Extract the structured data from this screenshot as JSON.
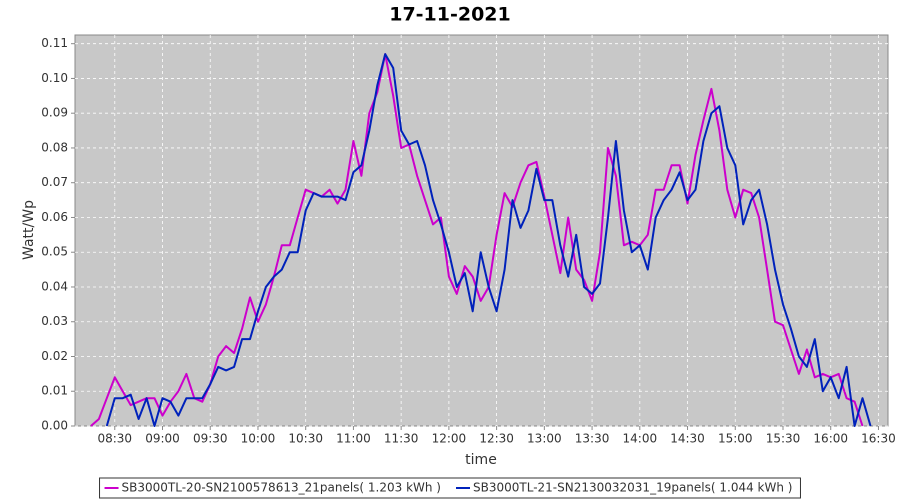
{
  "chart_data": {
    "type": "line",
    "title": "17-11-2021",
    "x_label": "time",
    "y_label": "Watt/Wp",
    "x": [
      495,
      500,
      505,
      510,
      515,
      520,
      525,
      530,
      535,
      540,
      545,
      550,
      555,
      560,
      565,
      570,
      575,
      580,
      585,
      590,
      595,
      600,
      605,
      610,
      615,
      620,
      625,
      630,
      635,
      640,
      645,
      650,
      655,
      660,
      665,
      670,
      675,
      680,
      685,
      690,
      695,
      700,
      705,
      710,
      715,
      720,
      725,
      730,
      735,
      740,
      745,
      750,
      755,
      760,
      765,
      770,
      775,
      780,
      785,
      790,
      795,
      800,
      805,
      810,
      815,
      820,
      825,
      830,
      835,
      840,
      845,
      850,
      855,
      860,
      865,
      870,
      875,
      880,
      885,
      890,
      895,
      900,
      905,
      910,
      915,
      920,
      925,
      930,
      935,
      940,
      945,
      950,
      955,
      960,
      965,
      970,
      975,
      980,
      985
    ],
    "series": [
      {
        "name": "SB3000TL-20-SN2100578613_21panels( 1.203 kWh )",
        "color": "#cc00cc",
        "values": [
          0,
          0.002,
          0.008,
          0.014,
          0.01,
          0.006,
          0.007,
          0.008,
          0.008,
          0.003,
          0.007,
          0.01,
          0.015,
          0.008,
          0.007,
          0.012,
          0.02,
          0.023,
          0.021,
          0.028,
          0.037,
          0.03,
          0.035,
          0.043,
          0.052,
          0.052,
          0.06,
          0.068,
          0.067,
          0.066,
          0.068,
          0.064,
          0.068,
          0.082,
          0.072,
          0.09,
          0.096,
          0.107,
          0.095,
          0.08,
          0.081,
          0.072,
          0.065,
          0.058,
          0.06,
          0.043,
          0.038,
          0.046,
          0.043,
          0.036,
          0.04,
          0.055,
          0.067,
          0.063,
          0.07,
          0.075,
          0.076,
          0.066,
          0.055,
          0.044,
          0.06,
          0.045,
          0.042,
          0.036,
          0.05,
          0.08,
          0.072,
          0.052,
          0.053,
          0.052,
          0.055,
          0.068,
          0.068,
          0.075,
          0.075,
          0.064,
          0.078,
          0.088,
          0.097,
          0.085,
          0.068,
          0.06,
          0.068,
          0.067,
          0.06,
          0.045,
          0.03,
          0.029,
          0.022,
          0.015,
          0.022,
          0.014,
          0.015,
          0.014,
          0.015,
          0.008,
          0.007,
          0,
          null
        ]
      },
      {
        "name": "SB3000TL-21-SN2130032031_19panels( 1.044 kWh )",
        "color": "#0022bb",
        "values": [
          null,
          null,
          0,
          0.008,
          0.008,
          0.009,
          0.002,
          0.008,
          0,
          0.008,
          0.007,
          0.003,
          0.008,
          0.008,
          0.008,
          0.012,
          0.017,
          0.016,
          0.017,
          0.025,
          0.025,
          0.033,
          0.04,
          0.043,
          0.045,
          0.05,
          0.05,
          0.062,
          0.067,
          0.066,
          0.066,
          0.066,
          0.065,
          0.073,
          0.075,
          0.085,
          0.098,
          0.107,
          0.103,
          0.085,
          0.081,
          0.082,
          0.075,
          0.065,
          0.058,
          0.05,
          0.04,
          0.044,
          0.033,
          0.05,
          0.04,
          0.033,
          0.045,
          0.065,
          0.057,
          0.062,
          0.074,
          0.065,
          0.065,
          0.052,
          0.043,
          0.055,
          0.04,
          0.038,
          0.041,
          0.06,
          0.082,
          0.062,
          0.05,
          0.052,
          0.045,
          0.06,
          0.065,
          0.068,
          0.073,
          0.065,
          0.068,
          0.082,
          0.09,
          0.092,
          0.08,
          0.075,
          0.058,
          0.065,
          0.068,
          0.058,
          0.045,
          0.035,
          0.028,
          0.02,
          0.017,
          0.025,
          0.01,
          0.014,
          0.008,
          0.017,
          0,
          0.008,
          0
        ]
      }
    ],
    "xlim": [
      485,
      996
    ],
    "xticks": [
      {
        "value": 510,
        "label": "08:30"
      },
      {
        "value": 540,
        "label": "09:00"
      },
      {
        "value": 570,
        "label": "09:30"
      },
      {
        "value": 600,
        "label": "10:00"
      },
      {
        "value": 630,
        "label": "10:30"
      },
      {
        "value": 660,
        "label": "11:00"
      },
      {
        "value": 690,
        "label": "11:30"
      },
      {
        "value": 720,
        "label": "12:00"
      },
      {
        "value": 750,
        "label": "12:30"
      },
      {
        "value": 780,
        "label": "13:00"
      },
      {
        "value": 810,
        "label": "13:30"
      },
      {
        "value": 840,
        "label": "14:00"
      },
      {
        "value": 870,
        "label": "14:30"
      },
      {
        "value": 900,
        "label": "15:00"
      },
      {
        "value": 930,
        "label": "15:30"
      },
      {
        "value": 960,
        "label": "16:00"
      },
      {
        "value": 990,
        "label": "16:30"
      }
    ],
    "ylim": [
      0,
      0.1125
    ],
    "yticks": [
      {
        "value": 0,
        "label": "0.00"
      },
      0.01,
      0.02,
      0.03,
      0.04,
      0.05,
      0.06,
      0.07,
      0.08,
      0.09,
      {
        "value": 0.1,
        "label": "0.10"
      },
      0.11
    ],
    "grid": true,
    "legend": "bottom"
  }
}
